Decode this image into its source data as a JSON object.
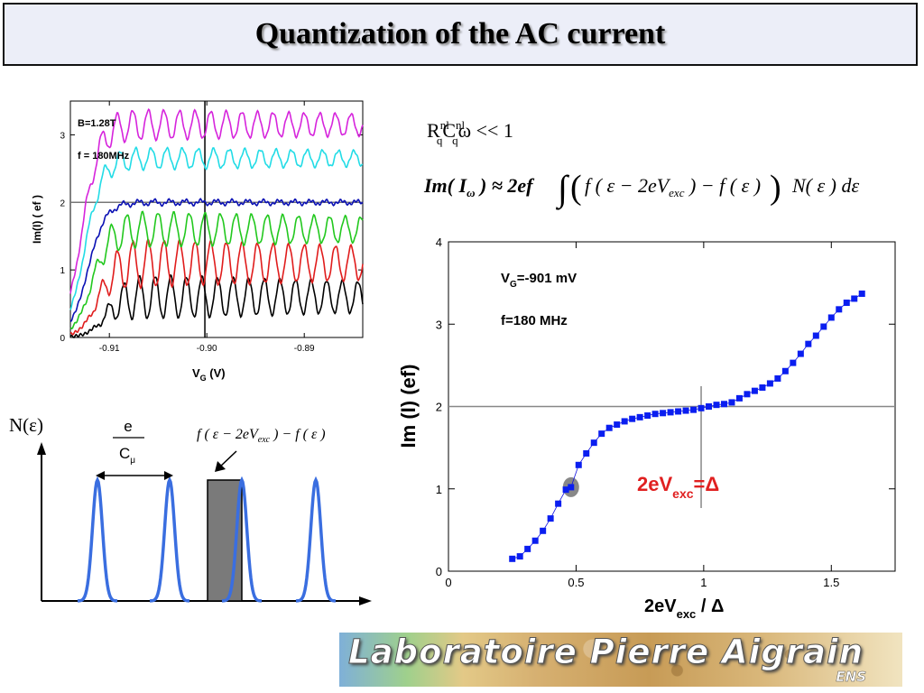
{
  "title": "Quantization of  the AC current",
  "top_formula": {
    "R": "R",
    "R_sup": "nl",
    "R_sub": "q",
    "C": "C",
    "C_sup": "nl",
    "C_sub": "q",
    "rest": "ω << 1"
  },
  "main_formula": {
    "lhs": "Im( I",
    "lhs_sub": "ω",
    "lhs_close": " ) ≈ 2ef",
    "integrand_a": "f ( ε − 2eV",
    "integrand_sub": "exc",
    "integrand_b": " ) − f ( ε )",
    "tail": "N( ε )  dε"
  },
  "dos_formula": {
    "a": "f ( ε − 2eV",
    "sub": "exc",
    "b": " ) − f ( ε )"
  },
  "dos": {
    "ylabel": "N(ε)",
    "e_label": "e",
    "c_label": "C",
    "c_sub": "μ"
  },
  "annotation": {
    "label": "2eV",
    "sub": "exc",
    "tail": "=Δ",
    "color": "#e02020"
  },
  "banner": {
    "text": "Laboratoire Pierre Aigrain",
    "ens": "ENS"
  },
  "chart_data": [
    {
      "type": "line",
      "xlabel": "V",
      "xlabel_sub": "G",
      "xlabel_unit": " (V)",
      "ylabel": "Im(I) ( ef )",
      "xlim": [
        -0.914,
        -0.884
      ],
      "ylim": [
        0,
        3.5
      ],
      "xticks": [
        -0.91,
        -0.9,
        -0.89
      ],
      "xtick_labels": [
        "-0.91",
        "-0.90",
        "-0.89"
      ],
      "yticks": [
        0,
        1,
        2,
        3
      ],
      "ytick_labels": [
        "0",
        "1",
        "2",
        "3"
      ],
      "reference_line_y": 2,
      "reference_line_x": -0.9002,
      "annotations": [
        "B=1.28T",
        "f = 180MHz"
      ],
      "series": [
        {
          "color": "#000000",
          "onset": -0.9105,
          "rise": 0.6,
          "amp": 0.35,
          "period": 0.0016
        },
        {
          "color": "#e01c1c",
          "onset": -0.9112,
          "rise": 1.1,
          "amp": 0.38,
          "period": 0.0016
        },
        {
          "color": "#22c81e",
          "onset": -0.9118,
          "rise": 1.6,
          "amp": 0.28,
          "period": 0.0016
        },
        {
          "color": "#0a10b4",
          "onset": -0.9122,
          "rise": 2.0,
          "amp": 0.04,
          "period": 0.0016
        },
        {
          "color": "#22dce6",
          "onset": -0.9125,
          "rise": 2.65,
          "amp": 0.17,
          "period": 0.0016
        },
        {
          "color": "#d624dc",
          "onset": -0.9128,
          "rise": 3.15,
          "amp": 0.24,
          "period": 0.0016
        }
      ]
    },
    {
      "type": "scatter",
      "xlabel": "2eV",
      "xlabel_sub": "exc",
      "xlabel_tail": " / Δ",
      "ylabel": "Im (I) (ef)",
      "xlim": [
        0,
        1.75
      ],
      "ylim": [
        0,
        4.0
      ],
      "xticks": [
        0,
        0.5,
        1,
        1.5
      ],
      "xtick_labels": [
        "0",
        "0.5",
        "1",
        "1.5"
      ],
      "yticks": [
        0,
        1,
        2,
        3,
        4
      ],
      "ytick_labels": [
        "0",
        "1",
        "2",
        "3",
        "4"
      ],
      "reference_line_y": 2,
      "reference_line_x": 0.99,
      "annotation_vg": {
        "a": "V",
        "sub": "G",
        "b": "=-901 mV"
      },
      "annotation_f": "f=180 MHz",
      "highlight_point": {
        "x": 0.48,
        "y": 1.02
      },
      "x": [
        0.25,
        0.28,
        0.31,
        0.34,
        0.37,
        0.4,
        0.43,
        0.46,
        0.48,
        0.51,
        0.54,
        0.57,
        0.6,
        0.63,
        0.66,
        0.69,
        0.72,
        0.75,
        0.78,
        0.81,
        0.84,
        0.87,
        0.9,
        0.93,
        0.96,
        0.99,
        1.02,
        1.05,
        1.08,
        1.11,
        1.14,
        1.17,
        1.2,
        1.23,
        1.26,
        1.29,
        1.32,
        1.35,
        1.38,
        1.41,
        1.44,
        1.47,
        1.5,
        1.53,
        1.56,
        1.59,
        1.62
      ],
      "y": [
        0.15,
        0.18,
        0.27,
        0.37,
        0.49,
        0.64,
        0.82,
        0.99,
        1.02,
        1.29,
        1.43,
        1.56,
        1.67,
        1.74,
        1.78,
        1.82,
        1.85,
        1.87,
        1.89,
        1.91,
        1.92,
        1.93,
        1.94,
        1.95,
        1.96,
        1.98,
        2.0,
        2.02,
        2.03,
        2.05,
        2.1,
        2.15,
        2.19,
        2.23,
        2.28,
        2.34,
        2.43,
        2.53,
        2.64,
        2.76,
        2.86,
        2.97,
        3.08,
        3.18,
        3.26,
        3.31,
        3.37
      ]
    }
  ]
}
